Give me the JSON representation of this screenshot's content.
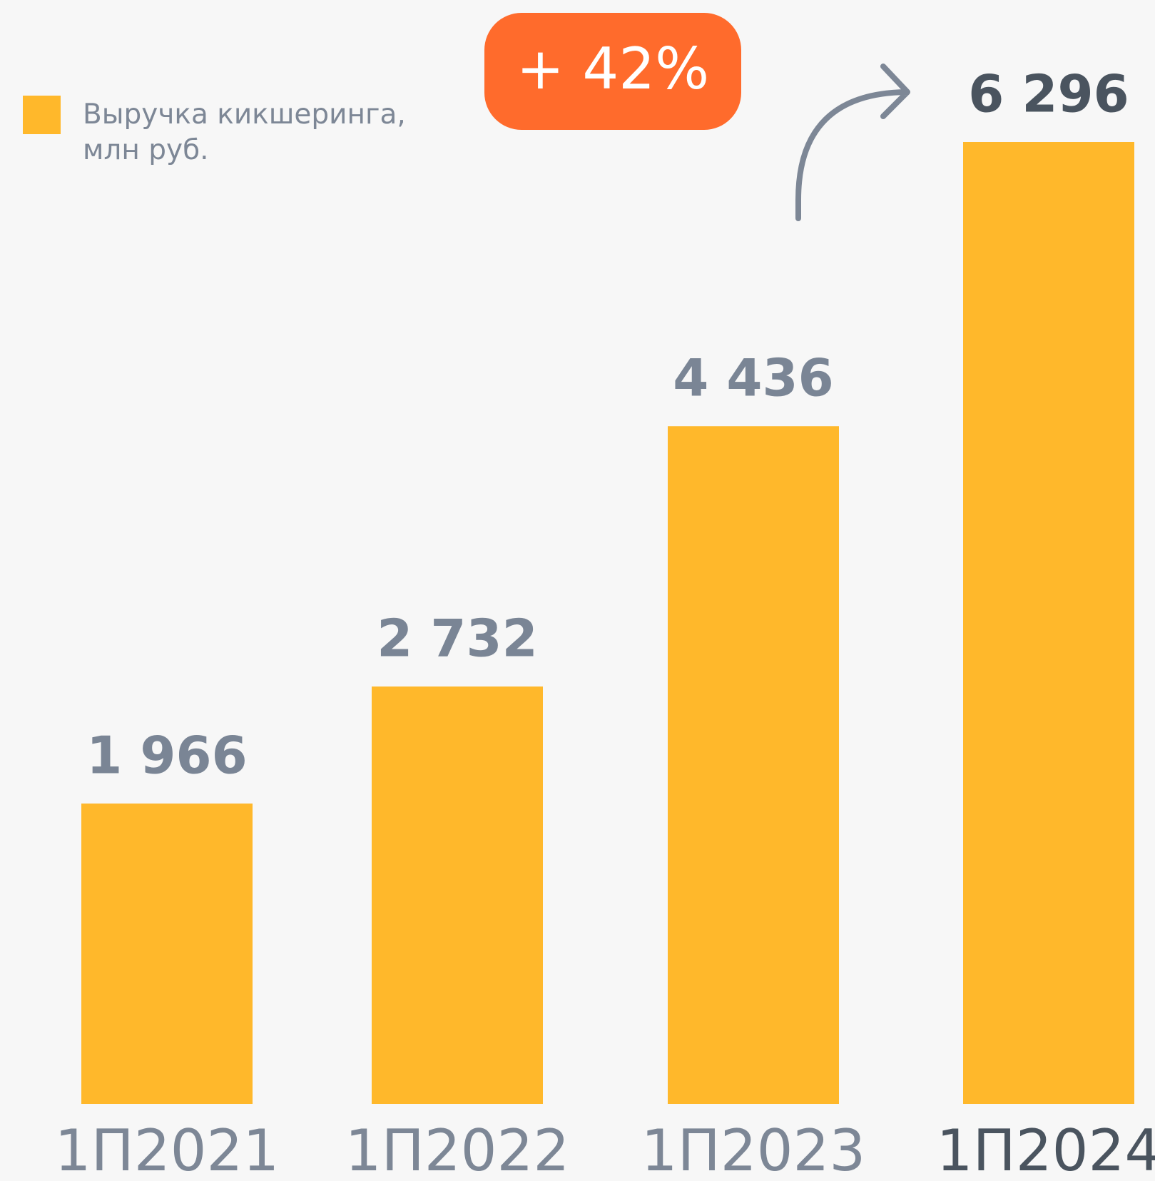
{
  "chart_data": {
    "type": "bar",
    "series": [
      {
        "name": "Выручка кикшеринга, млн руб.",
        "color": "#ffb82b",
        "values": [
          1966,
          2732,
          4436,
          6296
        ],
        "value_labels": [
          "1 966",
          "2 732",
          "4 436",
          "6 296"
        ]
      }
    ],
    "categories": [
      "1П2021",
      "1П2022",
      "1П2023",
      "1П2024"
    ],
    "annotation": "+ 42%",
    "annotation_color": "#ff6b2c"
  }
}
